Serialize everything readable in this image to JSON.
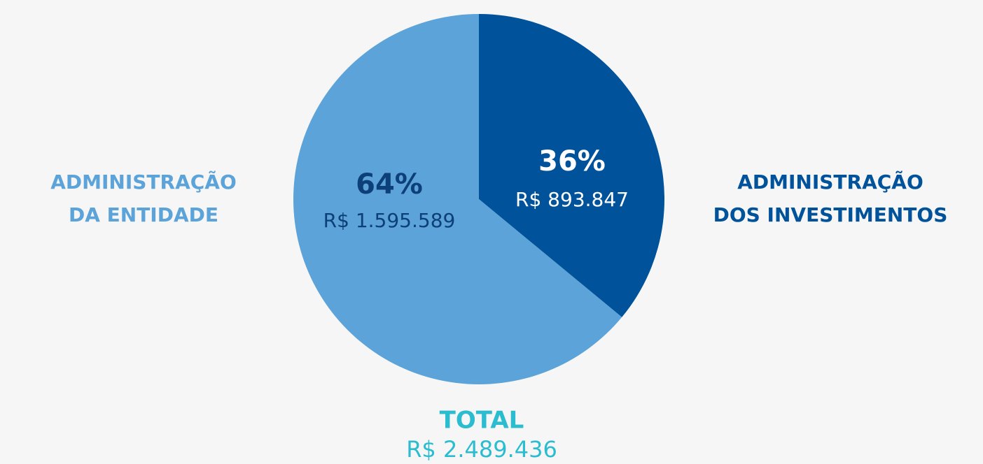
{
  "chart_data": {
    "type": "pie",
    "categories": [
      [
        "ADMINISTRAÇÃO",
        "DOS INVESTIMENTOS"
      ],
      [
        "ADMINISTRAÇÃO",
        "DA ENTIDADE"
      ]
    ],
    "values": [
      36,
      64
    ],
    "value_labels": [
      "36%",
      "64%"
    ],
    "amount_labels": [
      "R$ 893.847",
      "R$ 1.595.589"
    ],
    "colors": [
      "#00529b",
      "#5ba3d8"
    ],
    "total_title": "TOTAL",
    "total_label": "R$ 2.489.436"
  }
}
